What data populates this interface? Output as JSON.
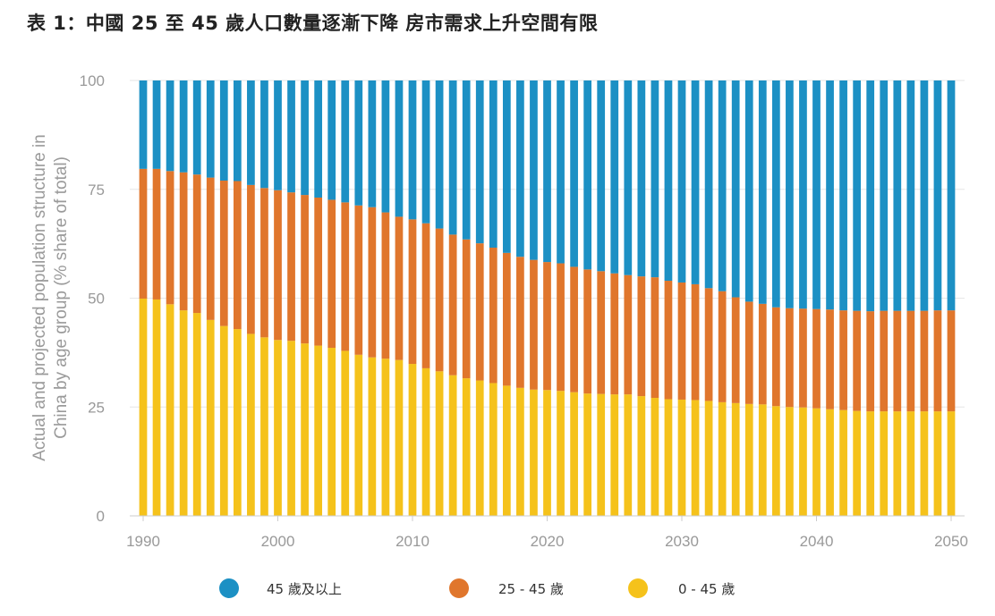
{
  "title": "表 1：中國 25 至 45 歲人口數量逐漸下降 房市需求上升空間有限",
  "chart_data": {
    "type": "bar",
    "stacked": true,
    "ylabel_lines": [
      "Actual and projected population structure in",
      "China by age group (% share of total)"
    ],
    "ylim": [
      0,
      100
    ],
    "y_ticks": [
      "0",
      "25",
      "50",
      "75",
      "100"
    ],
    "x_ticks": [
      "1990",
      "2000",
      "2010",
      "2020",
      "2030",
      "2040",
      "2050"
    ],
    "x_start": 1990,
    "x_end": 2050,
    "grid": true,
    "legend_position": "bottom",
    "series": [
      {
        "name": "0 - 45 歲",
        "color": "#f5c21b",
        "values": [
          49.9,
          49.7,
          48.6,
          47.2,
          46.6,
          45,
          43.6,
          42.9,
          41.8,
          41,
          40.4,
          40.2,
          39.6,
          39.1,
          38.6,
          37.9,
          37,
          36.4,
          36.1,
          35.8,
          34.9,
          33.9,
          33.2,
          32.3,
          31.6,
          31.1,
          30.5,
          29.9,
          29.4,
          29,
          28.9,
          28.7,
          28.4,
          28.1,
          28,
          27.9,
          27.9,
          27.5,
          27.1,
          26.8,
          26.7,
          26.6,
          26.4,
          26.1,
          25.9,
          25.7,
          25.6,
          25.2,
          25,
          24.9,
          24.7,
          24.5,
          24.3,
          24.1,
          24,
          24,
          24,
          24,
          24,
          24,
          24
        ]
      },
      {
        "name": "25 - 45 歲",
        "color": "#e0762c",
        "values": [
          29.8,
          30,
          30.6,
          31.7,
          31.8,
          32.7,
          33.4,
          34,
          34.2,
          34.3,
          34.4,
          34.1,
          34.1,
          34,
          34,
          34.1,
          34.3,
          34.5,
          33.6,
          32.9,
          33.2,
          33.3,
          32.8,
          32.3,
          31.9,
          31.5,
          31.1,
          30.5,
          30.1,
          29.8,
          29.4,
          29.3,
          28.8,
          28.5,
          28.2,
          27.8,
          27.4,
          27.5,
          27.7,
          27.2,
          26.9,
          26.6,
          25.9,
          25.5,
          24.3,
          23.5,
          23.1,
          22.7,
          22.7,
          22.7,
          22.8,
          22.9,
          22.9,
          23,
          23,
          23.1,
          23.1,
          23.1,
          23.1,
          23.2,
          23.2
        ]
      },
      {
        "name": "45 歲及以上",
        "color": "#1c90c4",
        "values": [
          20.3,
          20.3,
          20.8,
          21.1,
          21.6,
          22.3,
          23,
          23.1,
          24,
          24.7,
          25.2,
          25.7,
          26.3,
          26.9,
          27.4,
          28,
          28.7,
          29.1,
          30.3,
          31.3,
          31.9,
          32.8,
          34,
          35.4,
          36.5,
          37.4,
          38.4,
          39.6,
          40.5,
          41.2,
          41.7,
          42,
          42.8,
          43.4,
          43.8,
          44.3,
          44.7,
          45,
          45.2,
          46,
          46.4,
          46.8,
          47.7,
          48.4,
          49.8,
          50.8,
          51.3,
          52.1,
          52.3,
          52.4,
          52.5,
          52.6,
          52.8,
          52.9,
          53,
          52.9,
          52.9,
          52.9,
          52.9,
          52.8,
          52.8
        ]
      }
    ],
    "legend": [
      {
        "label": "45 歲及以上",
        "color": "#1c90c4"
      },
      {
        "label": "25 - 45 歲",
        "color": "#e0762c"
      },
      {
        "label": "0 - 45 歲",
        "color": "#f5c21b"
      }
    ]
  }
}
